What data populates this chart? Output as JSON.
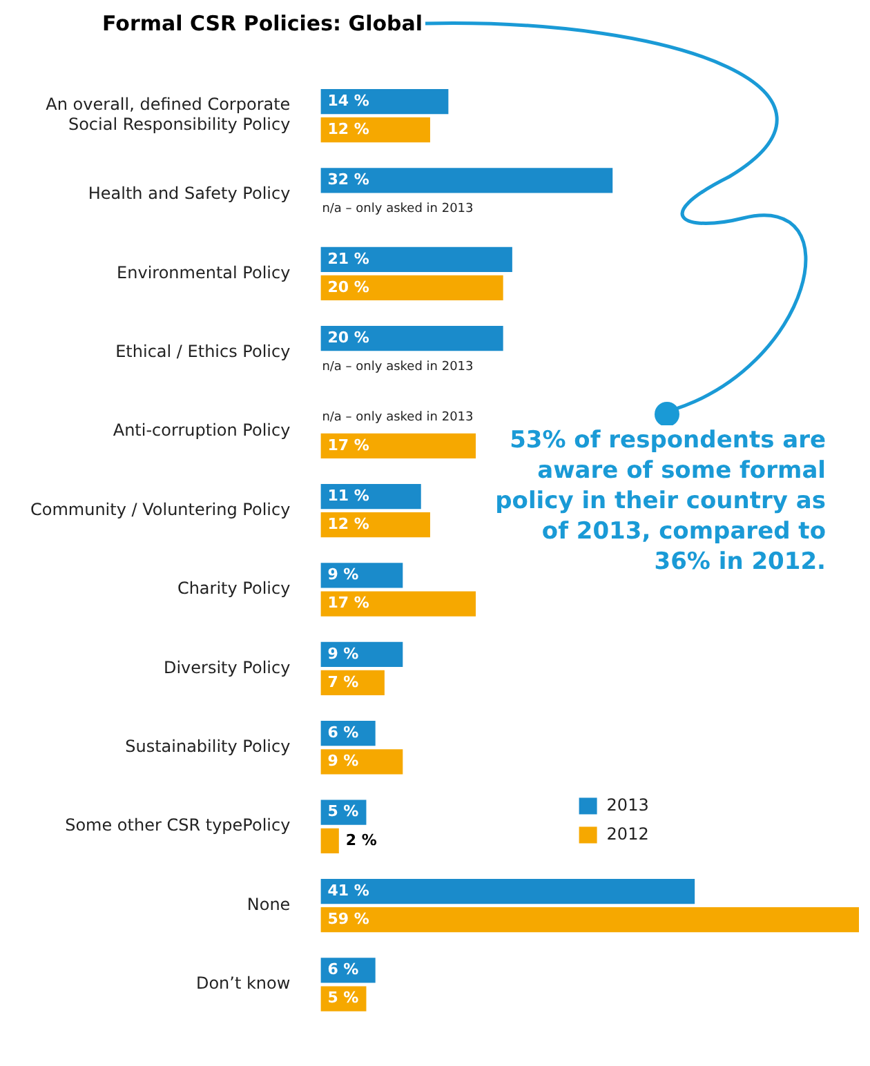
{
  "chart_data": {
    "type": "bar",
    "orientation": "horizontal",
    "title": "Formal CSR Policies: Global",
    "categories": [
      "An overall, defined Corporate Social Responsibility Policy",
      "Health and Safety Policy",
      "Environmental Policy",
      "Ethical / Ethics Policy",
      "Anti-corruption Policy",
      "Community / Voluntering Policy",
      "Charity Policy",
      "Diversity Policy",
      "Sustainability Policy",
      "Some other CSR typePolicy",
      "None",
      "Don’t know"
    ],
    "series": [
      {
        "name": "2013",
        "color": "#1a8bcb",
        "values": [
          14,
          32,
          21,
          20,
          null,
          11,
          9,
          9,
          6,
          5,
          41,
          6
        ],
        "value_labels": [
          "14 %",
          "32 %",
          "21 %",
          "20 %",
          null,
          "11 %",
          "9 %",
          "9 %",
          "6 %",
          "5 %",
          "41 %",
          "6 %"
        ]
      },
      {
        "name": "2012",
        "color": "#f6a800",
        "values": [
          12,
          null,
          20,
          null,
          17,
          12,
          17,
          7,
          9,
          2,
          59,
          5
        ],
        "value_labels": [
          "12 %",
          null,
          "20 %",
          null,
          "17 %",
          "12 %",
          "17 %",
          "7 %",
          "9 %",
          "2 %",
          "59 %",
          "5 %"
        ]
      }
    ],
    "xlim": [
      0,
      59
    ],
    "tick_labels": "y",
    "legend": "right",
    "annotations": [
      {
        "text": "n/a – only asked in 2013",
        "y": "Health and Safety Policy"
      },
      {
        "text": "n/a – only asked in 2013",
        "y": "Ethical / Ethics Policy"
      },
      {
        "text": "n/a – only asked in 2013",
        "y": "Anti-corruption Policy"
      },
      "53% of respondents are aware of some formal policy in their country as of 2013, compared to 36% in 2012."
    ]
  }
}
